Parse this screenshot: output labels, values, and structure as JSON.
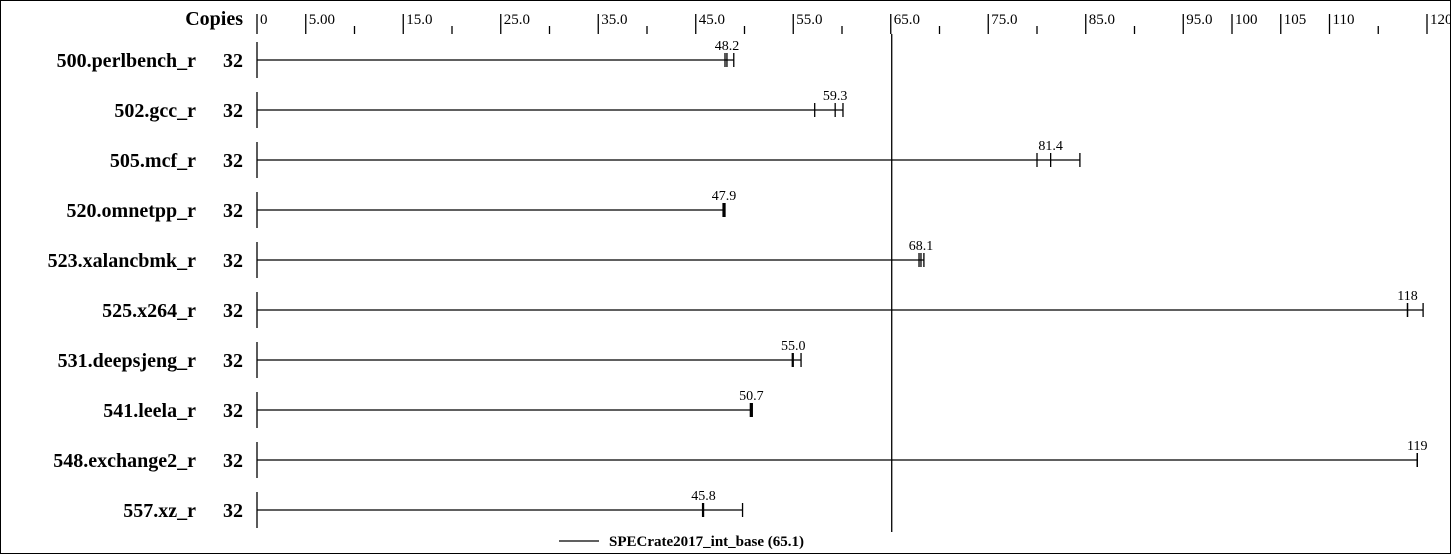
{
  "chart_data": {
    "type": "bar",
    "orientation": "horizontal",
    "copies_label": "Copies",
    "x_ticks_major": [
      "0",
      "5.00",
      "15.0",
      "25.0",
      "35.0",
      "45.0",
      "55.0",
      "65.0",
      "75.0",
      "85.0",
      "95.0",
      "100",
      "105",
      "110",
      "120"
    ],
    "x_tick_values": [
      0,
      5,
      15,
      25,
      35,
      45,
      55,
      65,
      75,
      85,
      95,
      100,
      105,
      110,
      120
    ],
    "xlim": [
      0,
      120
    ],
    "benchmarks": [
      {
        "name": "500.perlbench_r",
        "copies": "32",
        "value": 48.2,
        "value_label": "48.2",
        "min": 48.0,
        "max": 48.9
      },
      {
        "name": "502.gcc_r",
        "copies": "32",
        "value": 59.3,
        "value_label": "59.3",
        "min": 57.2,
        "max": 60.1
      },
      {
        "name": "505.mcf_r",
        "copies": "32",
        "value": 81.4,
        "value_label": "81.4",
        "min": 80.0,
        "max": 84.4
      },
      {
        "name": "520.omnetpp_r",
        "copies": "32",
        "value": 47.9,
        "value_label": "47.9",
        "min": 47.8,
        "max": 48.0
      },
      {
        "name": "523.xalancbmk_r",
        "copies": "32",
        "value": 68.1,
        "value_label": "68.1",
        "min": 67.9,
        "max": 68.4
      },
      {
        "name": "525.x264_r",
        "copies": "32",
        "value": 118,
        "value_label": "118",
        "min": 118.0,
        "max": 119.6
      },
      {
        "name": "531.deepsjeng_r",
        "copies": "32",
        "value": 55.0,
        "value_label": "55.0",
        "min": 54.9,
        "max": 55.8
      },
      {
        "name": "541.leela_r",
        "copies": "32",
        "value": 50.7,
        "value_label": "50.7",
        "min": 50.6,
        "max": 50.8
      },
      {
        "name": "548.exchange2_r",
        "copies": "32",
        "value": 119,
        "value_label": "119",
        "min": 119.0,
        "max": 119.0
      },
      {
        "name": "557.xz_r",
        "copies": "32",
        "value": 45.8,
        "value_label": "45.8",
        "min": 45.7,
        "max": 49.8
      }
    ],
    "reference_line": {
      "value": 65.1,
      "label": "SPECrate2017_int_base (65.1)"
    },
    "legend_position": "bottom-center"
  }
}
